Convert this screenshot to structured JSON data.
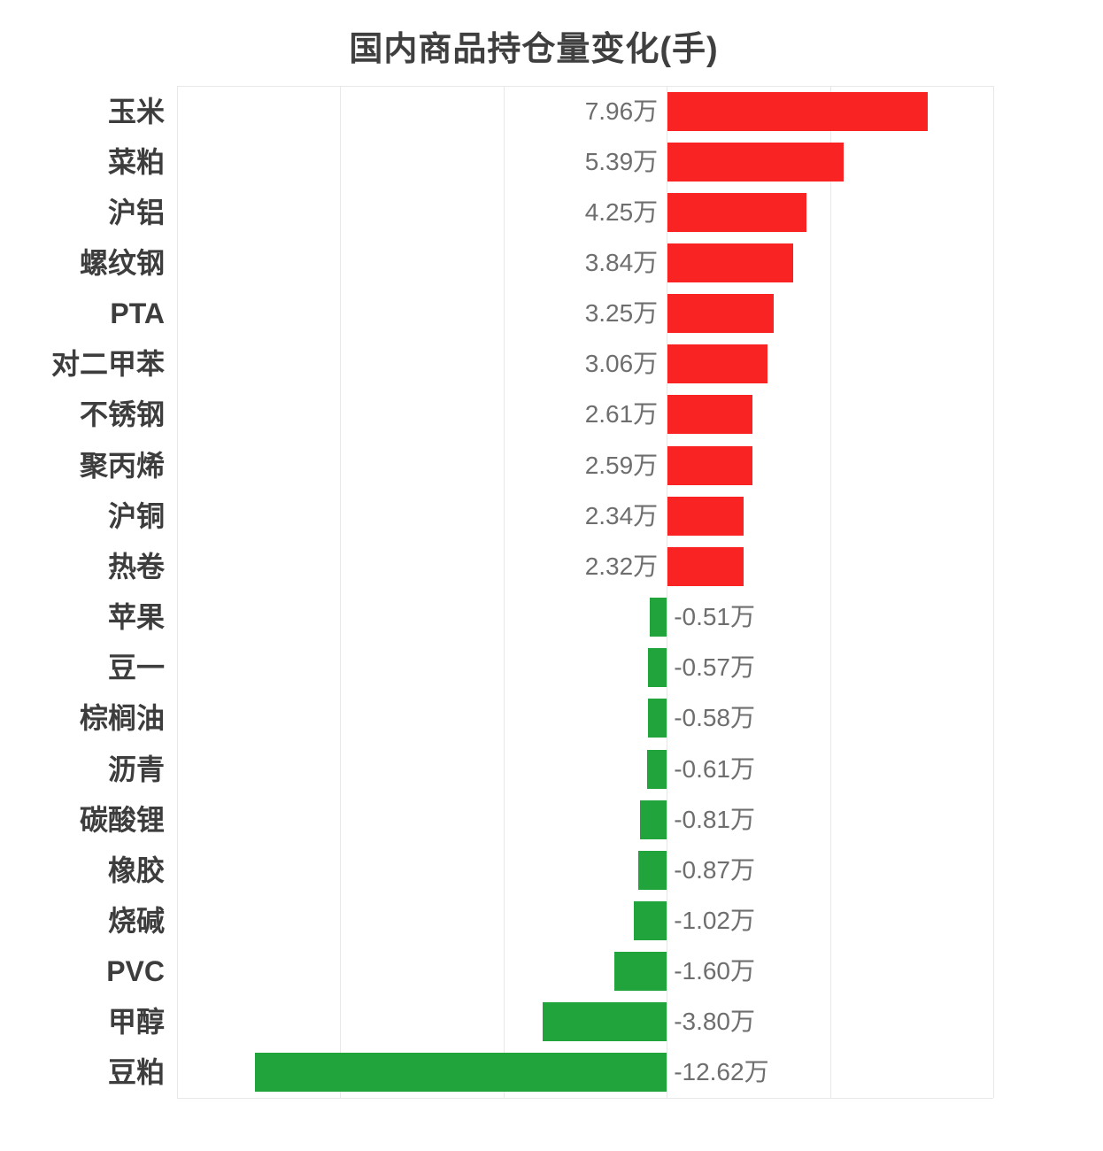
{
  "title": "国内商品持仓量变化(手)",
  "chart_data": {
    "type": "bar",
    "orientation": "horizontal",
    "title": "国内商品持仓量变化(手)",
    "unit": "万",
    "categories": [
      "玉米",
      "菜粕",
      "沪铝",
      "螺纹钢",
      "PTA",
      "对二甲苯",
      "不锈钢",
      "聚丙烯",
      "沪铜",
      "热卷",
      "苹果",
      "豆一",
      "棕榈油",
      "沥青",
      "碳酸锂",
      "橡胶",
      "烧碱",
      "PVC",
      "甲醇",
      "豆粕"
    ],
    "values": [
      7.96,
      5.39,
      4.25,
      3.84,
      3.25,
      3.06,
      2.61,
      2.59,
      2.34,
      2.32,
      -0.51,
      -0.57,
      -0.58,
      -0.61,
      -0.81,
      -0.87,
      -1.02,
      -1.6,
      -3.8,
      -12.62
    ],
    "value_labels": [
      "7.96万",
      "5.39万",
      "4.25万",
      "3.84万",
      "3.25万",
      "3.06万",
      "2.61万",
      "2.59万",
      "2.34万",
      "2.32万",
      "-0.51万",
      "-0.57万",
      "-0.58万",
      "-0.61万",
      "-0.81万",
      "-0.87万",
      "-1.02万",
      "-1.60万",
      "-3.80万",
      "-12.62万"
    ],
    "xlim": [
      -15,
      10
    ],
    "grid_interval": 5,
    "grid_on": true,
    "legend": "none",
    "positive_color": "#f92323",
    "negative_color": "#21a43c",
    "value_label_color": "#6e6e6e",
    "category_label_color": "#3d3d3d",
    "grid_color": "#e8e8e8",
    "title_color": "#3f3f3f",
    "background_color": "#ffffff"
  }
}
